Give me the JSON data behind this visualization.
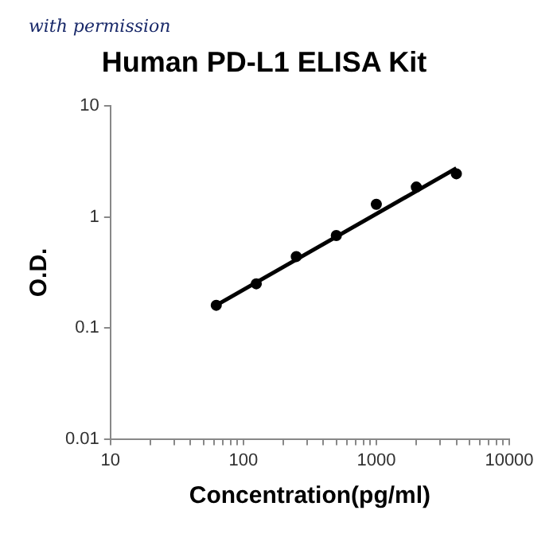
{
  "chart_data": {
    "type": "scatter",
    "title": "Human PD-L1 ELISA Kit",
    "xlabel": "Concentration(pg/ml)",
    "ylabel": "O.D.",
    "annotations": [
      "with permission"
    ],
    "log": "xy",
    "grid": false,
    "legend": false,
    "marker": "circle",
    "xlim": [
      10,
      10000
    ],
    "ylim": [
      0.01,
      10
    ],
    "xticks": [
      10,
      {
        "value": 20,
        "label": null
      },
      {
        "value": 30,
        "label": null
      },
      {
        "value": 40,
        "label": null
      },
      {
        "value": 50,
        "label": null
      },
      {
        "value": 60,
        "label": null
      },
      {
        "value": 70,
        "label": null
      },
      {
        "value": 80,
        "label": null
      },
      {
        "value": 90,
        "label": null
      },
      100,
      {
        "value": 200,
        "label": null
      },
      {
        "value": 300,
        "label": null
      },
      {
        "value": 400,
        "label": null
      },
      {
        "value": 500,
        "label": null
      },
      {
        "value": 600,
        "label": null
      },
      {
        "value": 700,
        "label": null
      },
      {
        "value": 800,
        "label": null
      },
      {
        "value": 900,
        "label": null
      },
      1000,
      {
        "value": 2000,
        "label": null
      },
      {
        "value": 3000,
        "label": null
      },
      {
        "value": 4000,
        "label": null
      },
      {
        "value": 5000,
        "label": null
      },
      {
        "value": 6000,
        "label": null
      },
      {
        "value": 7000,
        "label": null
      },
      {
        "value": 8000,
        "label": null
      },
      {
        "value": 9000,
        "label": null
      },
      10000
    ],
    "yticks": [
      0.01,
      0.1,
      1,
      10
    ],
    "series": [
      {
        "type": "scatter",
        "color": "#000000",
        "x": [
          62.5,
          125,
          250,
          500,
          1000,
          2000,
          4000
        ],
        "values": [
          0.16,
          0.25,
          0.44,
          0.68,
          1.3,
          1.86,
          2.45
        ]
      },
      {
        "type": "line",
        "color": "#000000",
        "marker": "none",
        "line_style": "solid",
        "x": [
          62.5,
          4000
        ],
        "values": [
          0.16,
          2.75
        ]
      }
    ]
  }
}
